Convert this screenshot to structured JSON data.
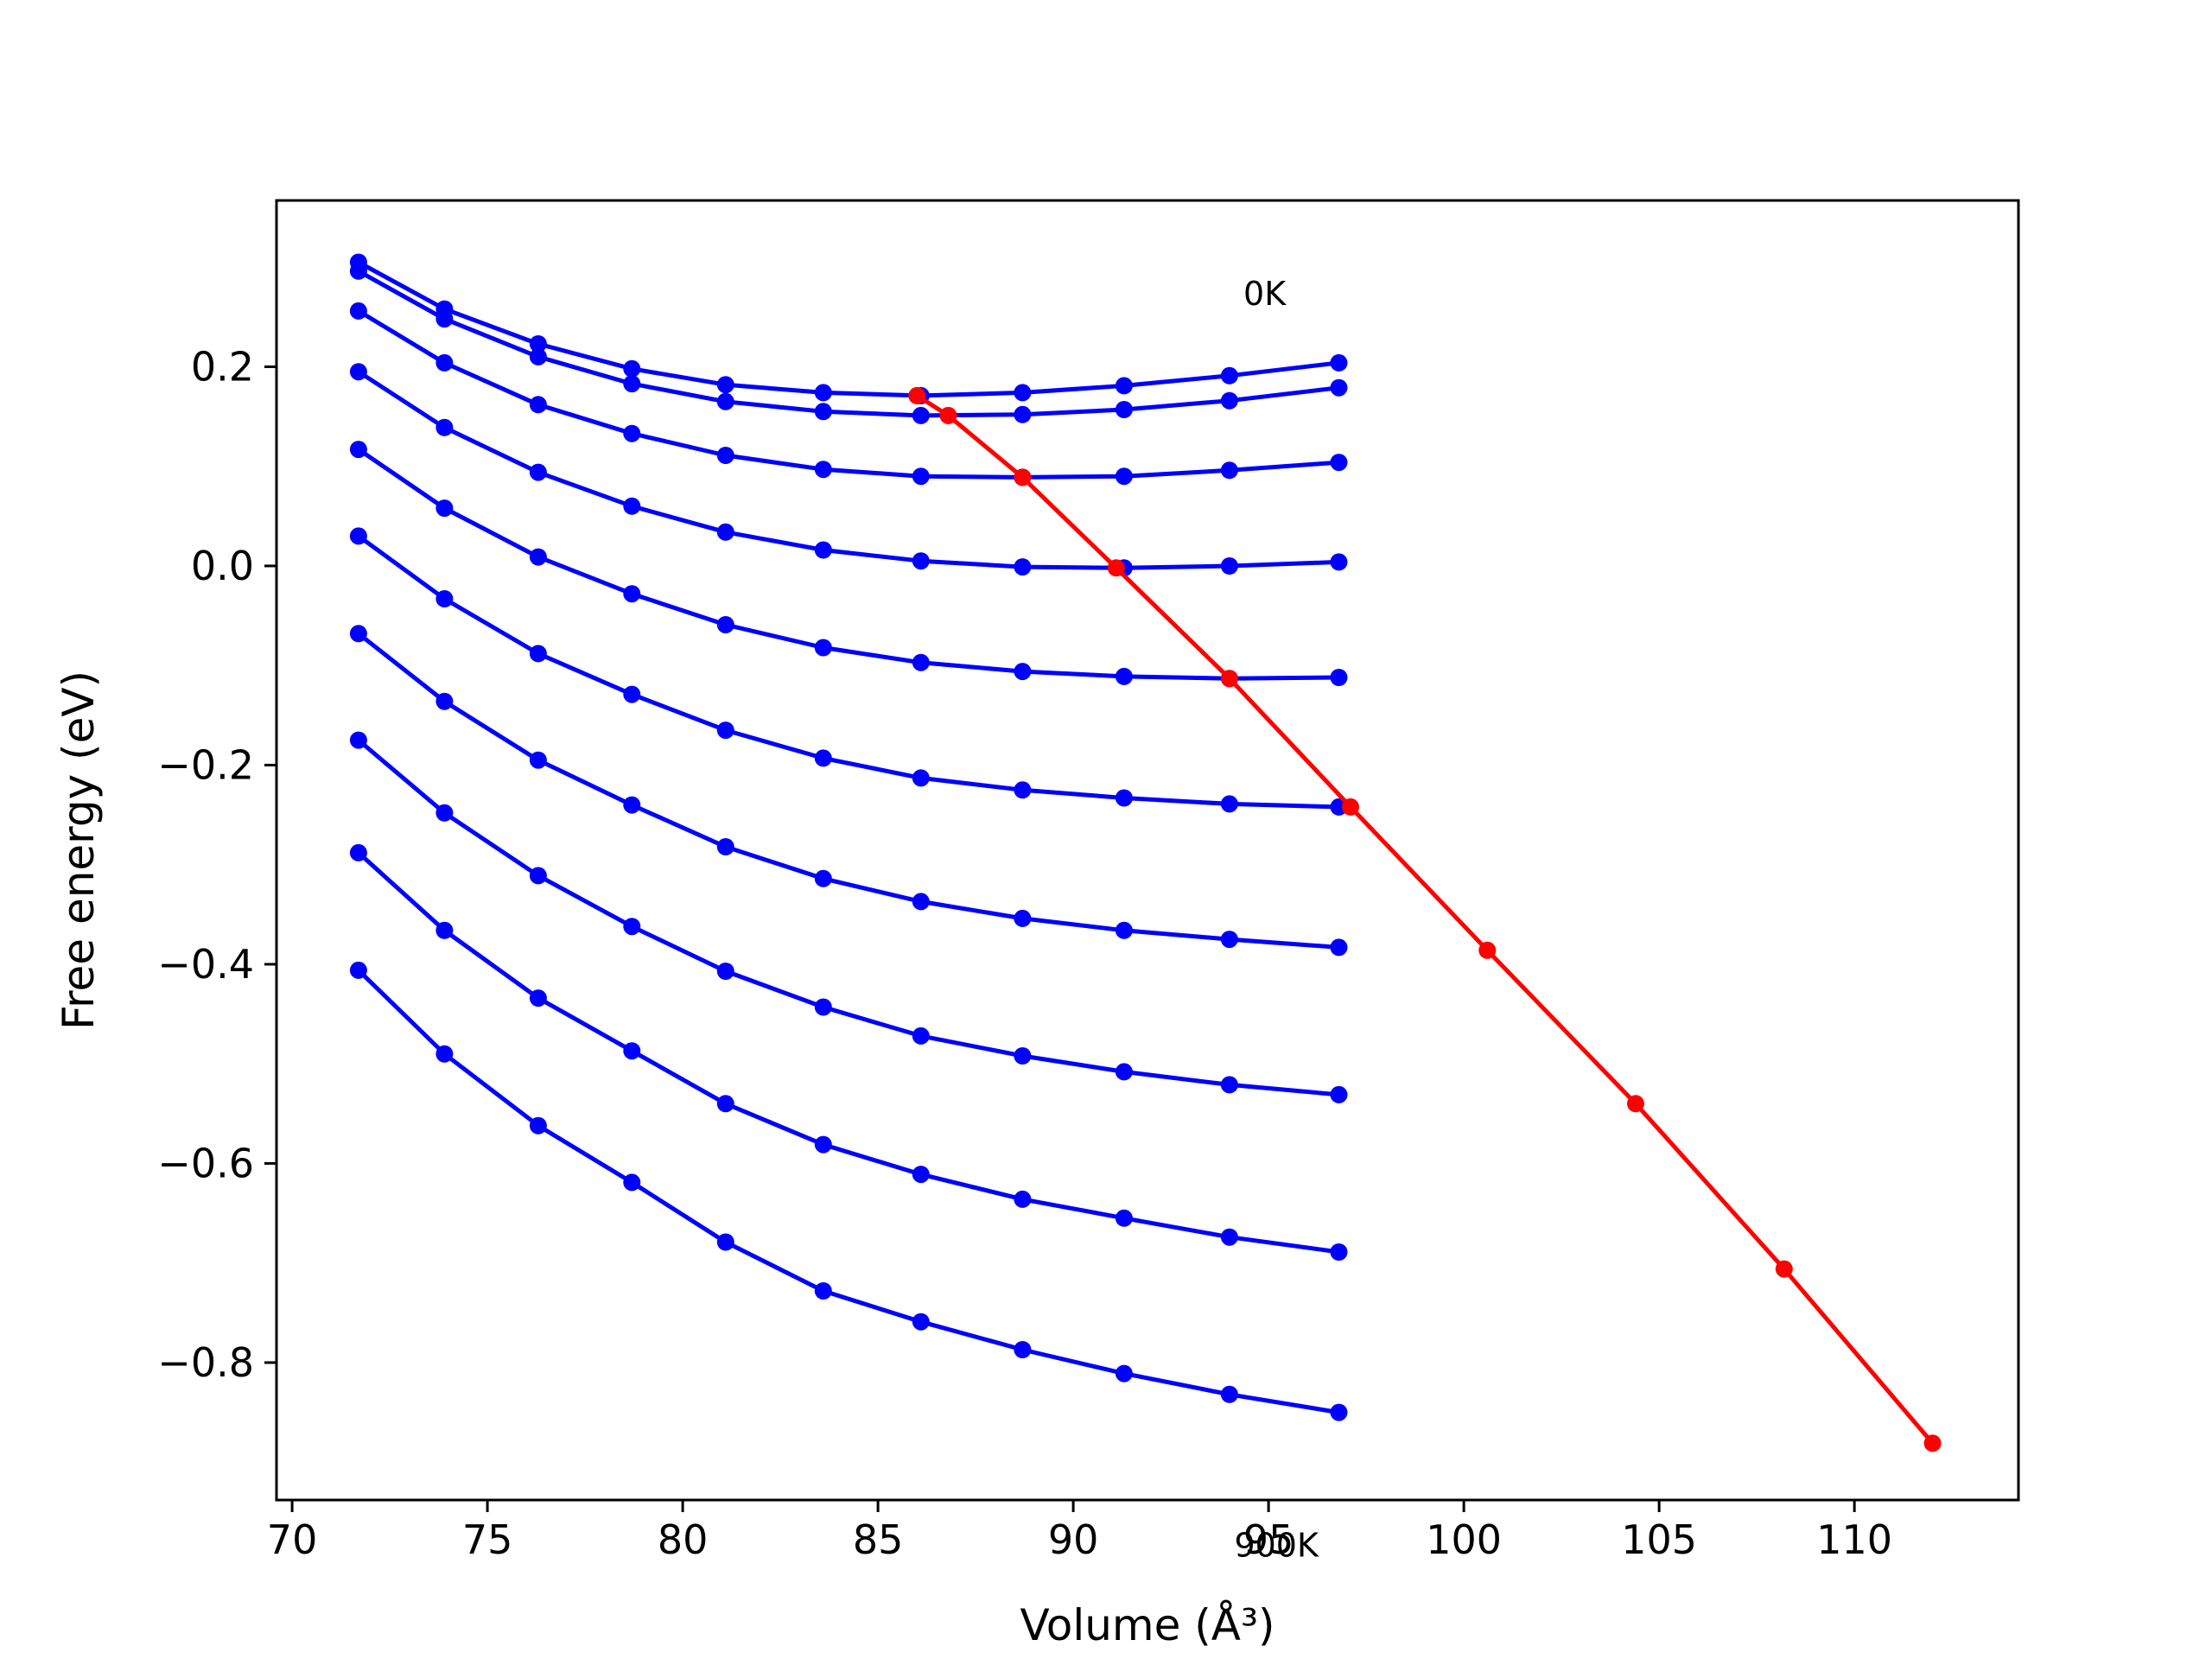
{
  "chart_data": {
    "type": "line",
    "title": "",
    "xlabel": "Volume (Å³)",
    "ylabel": "Free energy (eV)",
    "xlim": [
      69.6,
      114.2
    ],
    "ylim": [
      -0.938,
      0.367
    ],
    "xticks": [
      70,
      75,
      80,
      85,
      90,
      95,
      100,
      105,
      110
    ],
    "xtick_labels": [
      "70",
      "75",
      "80",
      "85",
      "90",
      "95",
      "100",
      "105",
      "110"
    ],
    "yticks": [
      0.2,
      0.0,
      -0.2,
      -0.4,
      -0.6,
      -0.8
    ],
    "ytick_labels": [
      "0.2",
      "0.0",
      "−0.2",
      "−0.4",
      "−0.6",
      "−0.8"
    ],
    "grid": false,
    "x": [
      71.7,
      73.9,
      76.3,
      78.7,
      81.1,
      83.6,
      86.1,
      88.7,
      91.3,
      94.0,
      96.8
    ],
    "series": [
      {
        "color": "#0000ff",
        "values": [
          0.305,
          0.258,
          0.223,
          0.198,
          0.182,
          0.174,
          0.171,
          0.174,
          0.181,
          0.191,
          0.204
        ]
      },
      {
        "color": "#0000ff",
        "values": [
          0.296,
          0.248,
          0.21,
          0.183,
          0.165,
          0.155,
          0.151,
          0.152,
          0.157,
          0.166,
          0.179
        ]
      },
      {
        "color": "#0000ff",
        "values": [
          0.256,
          0.204,
          0.162,
          0.133,
          0.111,
          0.097,
          0.09,
          0.089,
          0.09,
          0.096,
          0.104
        ]
      },
      {
        "color": "#0000ff",
        "values": [
          0.195,
          0.139,
          0.094,
          0.06,
          0.034,
          0.016,
          0.005,
          -0.001,
          -0.002,
          0.0,
          0.004
        ]
      },
      {
        "color": "#0000ff",
        "values": [
          0.117,
          0.058,
          0.009,
          -0.028,
          -0.059,
          -0.082,
          -0.097,
          -0.106,
          -0.111,
          -0.113,
          -0.112
        ]
      },
      {
        "color": "#0000ff",
        "values": [
          0.03,
          -0.033,
          -0.088,
          -0.129,
          -0.165,
          -0.193,
          -0.213,
          -0.225,
          -0.233,
          -0.239,
          -0.242
        ]
      },
      {
        "color": "#0000ff",
        "values": [
          -0.068,
          -0.136,
          -0.195,
          -0.24,
          -0.282,
          -0.314,
          -0.337,
          -0.354,
          -0.366,
          -0.375,
          -0.383
        ]
      },
      {
        "color": "#0000ff",
        "values": [
          -0.175,
          -0.248,
          -0.311,
          -0.362,
          -0.407,
          -0.443,
          -0.472,
          -0.492,
          -0.508,
          -0.521,
          -0.531
        ]
      },
      {
        "color": "#0000ff",
        "values": [
          -0.288,
          -0.366,
          -0.434,
          -0.487,
          -0.54,
          -0.581,
          -0.611,
          -0.636,
          -0.655,
          -0.674,
          -0.689
        ]
      },
      {
        "color": "#0000ff",
        "values": [
          -0.406,
          -0.49,
          -0.562,
          -0.619,
          -0.679,
          -0.728,
          -0.759,
          -0.787,
          -0.811,
          -0.832,
          -0.85
        ]
      }
    ],
    "trend_line": {
      "color": "#ff0000",
      "x": [
        86.0,
        86.8,
        88.7,
        91.1,
        94.0,
        97.1,
        100.6,
        104.4,
        108.2,
        112.0
      ],
      "y": [
        0.171,
        0.151,
        0.089,
        -0.002,
        -0.113,
        -0.242,
        -0.386,
        -0.54,
        -0.706,
        -0.881
      ]
    },
    "annotations": [
      {
        "text": "0K",
        "x": 94.9,
        "y": 0.262
      },
      {
        "text": "900K",
        "x": 95.2,
        "y": -0.995
      }
    ]
  }
}
